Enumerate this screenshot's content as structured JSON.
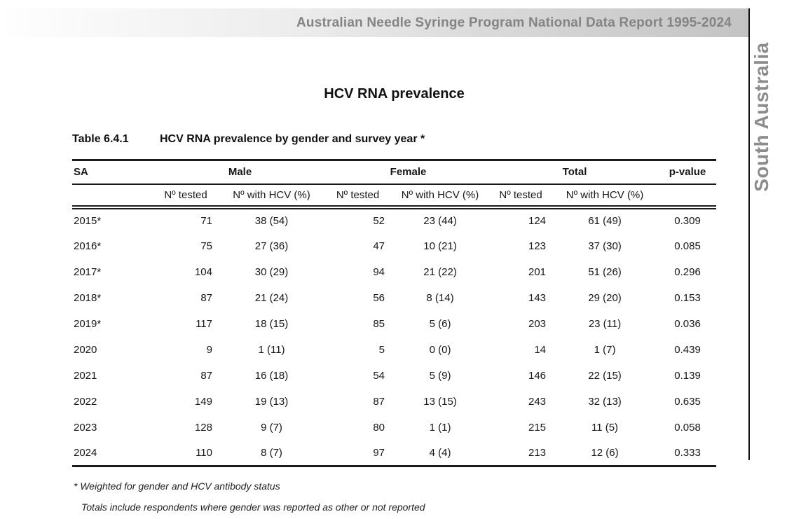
{
  "header_bar": {
    "title": "Australian Needle Syringe Program National Data Report 1995-2024"
  },
  "side_tab": {
    "label": "South Australia"
  },
  "section_title": "HCV RNA prevalence",
  "caption": {
    "number": "Table 6.4.1",
    "text": "HCV RNA prevalence by gender and survey year *"
  },
  "colors": {
    "rule": "#1a1a1a",
    "banner_gray": "#c3c3c3",
    "muted_text_gray": "#848484",
    "side_label_gray": "#8c8c8c"
  },
  "table": {
    "corner_label": "SA",
    "group_headers": {
      "male": "Male",
      "female": "Female",
      "total": "Total",
      "pvalue": "p-value"
    },
    "subheaders": {
      "tested": "Nº tested",
      "with_hcv": "Nº with HCV (%)"
    },
    "rows": [
      {
        "year": "2015*",
        "male_tested": "71",
        "male_hcv": "38 (54)",
        "female_tested": "52",
        "female_hcv": "23 (44)",
        "total_tested": "124",
        "total_hcv": "61 (49)",
        "p": "0.309"
      },
      {
        "year": "2016*",
        "male_tested": "75",
        "male_hcv": "27 (36)",
        "female_tested": "47",
        "female_hcv": "10 (21)",
        "total_tested": "123",
        "total_hcv": "37 (30)",
        "p": "0.085"
      },
      {
        "year": "2017*",
        "male_tested": "104",
        "male_hcv": "30 (29)",
        "female_tested": "94",
        "female_hcv": "21 (22)",
        "total_tested": "201",
        "total_hcv": "51 (26)",
        "p": "0.296"
      },
      {
        "year": "2018*",
        "male_tested": "87",
        "male_hcv": "21 (24)",
        "female_tested": "56",
        "female_hcv": "8 (14)",
        "total_tested": "143",
        "total_hcv": "29 (20)",
        "p": "0.153"
      },
      {
        "year": "2019*",
        "male_tested": "117",
        "male_hcv": "18 (15)",
        "female_tested": "85",
        "female_hcv": "5 (6)",
        "total_tested": "203",
        "total_hcv": "23 (11)",
        "p": "0.036"
      },
      {
        "year": "2020",
        "male_tested": "9",
        "male_hcv": "1 (11)",
        "female_tested": "5",
        "female_hcv": "0 (0)",
        "total_tested": "14",
        "total_hcv": "1 (7)",
        "p": "0.439"
      },
      {
        "year": "2021",
        "male_tested": "87",
        "male_hcv": "16 (18)",
        "female_tested": "54",
        "female_hcv": "5 (9)",
        "total_tested": "146",
        "total_hcv": "22 (15)",
        "p": "0.139"
      },
      {
        "year": "2022",
        "male_tested": "149",
        "male_hcv": "19 (13)",
        "female_tested": "87",
        "female_hcv": "13 (15)",
        "total_tested": "243",
        "total_hcv": "32 (13)",
        "p": "0.635"
      },
      {
        "year": "2023",
        "male_tested": "128",
        "male_hcv": "9 (7)",
        "female_tested": "80",
        "female_hcv": "1 (1)",
        "total_tested": "215",
        "total_hcv": "11 (5)",
        "p": "0.058"
      },
      {
        "year": "2024",
        "male_tested": "110",
        "male_hcv": "8 (7)",
        "female_tested": "97",
        "female_hcv": "4 (4)",
        "total_tested": "213",
        "total_hcv": "12 (6)",
        "p": "0.333"
      }
    ]
  },
  "footnotes": {
    "line1": "* Weighted for gender and HCV antibody status",
    "line2": "Totals include respondents where gender was reported as other or not reported"
  }
}
